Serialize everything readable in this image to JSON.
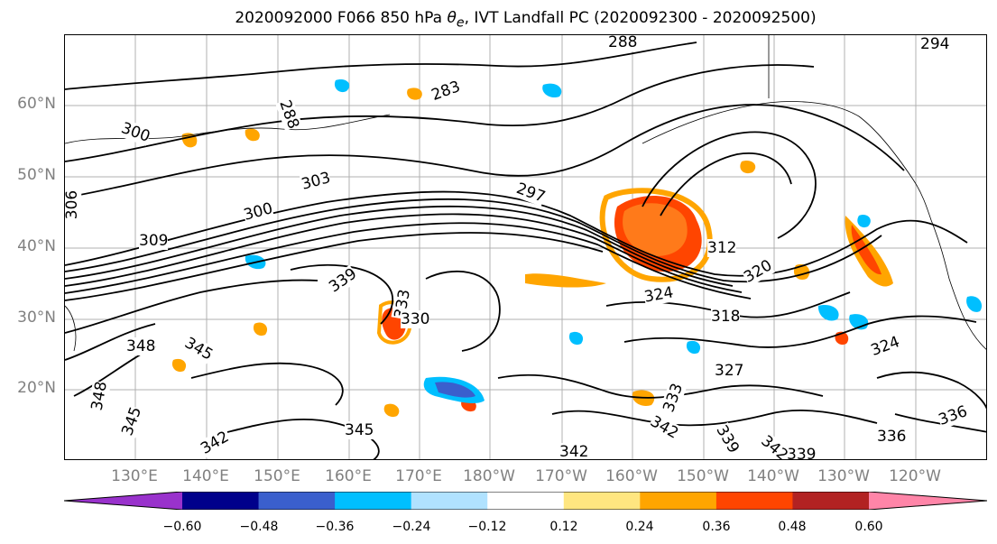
{
  "title": {
    "prefix": "2020092000 F066 850 hPa ",
    "var_symbol": "θ",
    "var_sub": "e",
    "suffix": ", IVT Landfall PC (2020092300 - 2020092500)"
  },
  "map": {
    "lat_labels": [
      "60°N",
      "50°N",
      "40°N",
      "30°N",
      "20°N"
    ],
    "lon_labels": [
      "130°E",
      "140°E",
      "150°E",
      "160°E",
      "170°E",
      "180°W",
      "170°W",
      "160°W",
      "150°W",
      "140°W",
      "130°W",
      "120°W"
    ],
    "contour_labels": [
      "288",
      "294",
      "283",
      "288",
      "300",
      "306",
      "303",
      "297",
      "300",
      "309",
      "312",
      "339",
      "333",
      "330",
      "324",
      "318",
      "320",
      "348",
      "345",
      "348",
      "345",
      "345",
      "342",
      "342",
      "327",
      "336",
      "336",
      "342",
      "333",
      "339",
      "339",
      "324",
      "342"
    ],
    "colors": {
      "land_outline": "#000000",
      "grid": "#b0b0b0",
      "contour": "#000000"
    }
  },
  "colorbar": {
    "colors": [
      "#9932cc",
      "#00008b",
      "#3a5fcd",
      "#00bfff",
      "#b0e2ff",
      "#ffffff",
      "#ffe680",
      "#ffa500",
      "#ff4500",
      "#b22222",
      "#ff85a8"
    ],
    "tick_labels": [
      "−0.60",
      "−0.48",
      "−0.36",
      "−0.24",
      "−0.12",
      "0.12",
      "0.24",
      "0.36",
      "0.48",
      "0.60"
    ]
  }
}
